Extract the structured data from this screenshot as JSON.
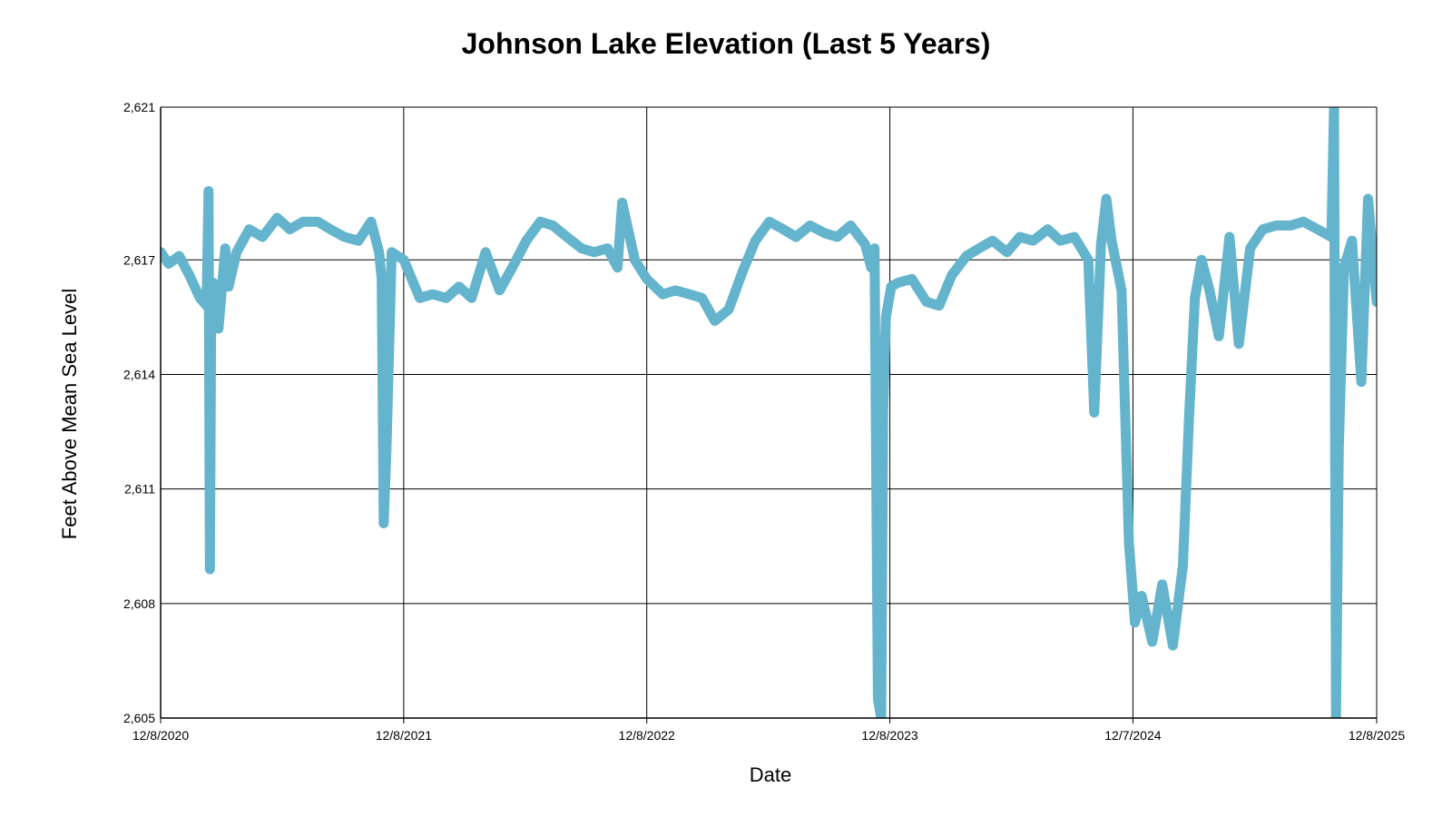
{
  "chart_data": {
    "type": "line",
    "title": "Johnson Lake Elevation (Last 5 Years)",
    "xlabel": "Date",
    "ylabel": "Feet Above Mean Sea Level",
    "x_tick_labels": [
      "12/8/2020",
      "12/8/2021",
      "12/8/2022",
      "12/8/2023",
      "12/7/2024",
      "12/8/2025"
    ],
    "y_tick_labels": [
      "2,605",
      "2,608",
      "2,611",
      "2,614",
      "2,617",
      "2,621"
    ],
    "ylim": [
      2605,
      2621
    ],
    "grid": true,
    "line_color": "#63b4cc",
    "series": [
      {
        "x": [
          "2020-12-08",
          "2020-12-20",
          "2021-01-05",
          "2021-01-20",
          "2021-02-05",
          "2021-02-15",
          "2021-02-18",
          "2021-02-20",
          "2021-02-22",
          "2021-02-25",
          "2021-03-05",
          "2021-03-15",
          "2021-03-20",
          "2021-04-01",
          "2021-04-20",
          "2021-05-10",
          "2021-06-01",
          "2021-06-20",
          "2021-07-10",
          "2021-08-01",
          "2021-08-20",
          "2021-09-10",
          "2021-10-01",
          "2021-10-20",
          "2021-11-01",
          "2021-11-05",
          "2021-11-08",
          "2021-11-12",
          "2021-11-20",
          "2021-12-08",
          "2022-01-01",
          "2022-01-20",
          "2022-02-10",
          "2022-03-01",
          "2022-03-20",
          "2022-04-10",
          "2022-05-01",
          "2022-05-20",
          "2022-06-10",
          "2022-07-01",
          "2022-07-20",
          "2022-08-10",
          "2022-09-01",
          "2022-09-20",
          "2022-10-10",
          "2022-10-25",
          "2022-11-01",
          "2022-11-20",
          "2022-12-08",
          "2023-01-01",
          "2023-01-20",
          "2023-02-10",
          "2023-03-01",
          "2023-03-20",
          "2023-04-10",
          "2023-05-01",
          "2023-05-20",
          "2023-06-10",
          "2023-07-01",
          "2023-07-20",
          "2023-08-10",
          "2023-09-01",
          "2023-09-20",
          "2023-10-10",
          "2023-11-01",
          "2023-11-10",
          "2023-11-15",
          "2023-11-20",
          "2023-11-25",
          "2023-11-28",
          "2023-12-02",
          "2023-12-10",
          "2023-12-20",
          "2024-01-10",
          "2024-02-01",
          "2024-02-20",
          "2024-03-10",
          "2024-04-01",
          "2024-04-20",
          "2024-05-10",
          "2024-06-01",
          "2024-06-20",
          "2024-07-10",
          "2024-08-01",
          "2024-08-20",
          "2024-09-10",
          "2024-10-01",
          "2024-10-10",
          "2024-10-20",
          "2024-10-28",
          "2024-11-05",
          "2024-11-20",
          "2024-12-01",
          "2024-12-10",
          "2024-12-20",
          "2025-01-05",
          "2025-01-20",
          "2025-02-05",
          "2025-02-20",
          "2025-03-01",
          "2025-03-10",
          "2025-03-20",
          "2025-04-01",
          "2025-04-15",
          "2025-05-01",
          "2025-05-15",
          "2025-06-01",
          "2025-06-20",
          "2025-07-10",
          "2025-08-01",
          "2025-08-20",
          "2025-09-10",
          "2025-10-01",
          "2025-10-05",
          "2025-10-08",
          "2025-10-12",
          "2025-10-20",
          "2025-11-01",
          "2025-11-15",
          "2025-11-25",
          "2025-12-08"
        ],
        "values": [
          2617.2,
          2616.9,
          2617.1,
          2616.6,
          2616.0,
          2615.8,
          2618.8,
          2608.9,
          2616.0,
          2616.4,
          2615.2,
          2617.3,
          2616.3,
          2617.2,
          2617.8,
          2617.6,
          2618.1,
          2617.8,
          2618.0,
          2618.0,
          2617.8,
          2617.6,
          2617.5,
          2618.0,
          2617.2,
          2616.5,
          2610.1,
          2612.0,
          2617.2,
          2617.0,
          2616.0,
          2616.1,
          2616.0,
          2616.3,
          2616.0,
          2617.2,
          2616.2,
          2616.8,
          2617.5,
          2618.0,
          2617.9,
          2617.6,
          2617.3,
          2617.2,
          2617.3,
          2616.8,
          2618.5,
          2617.0,
          2616.5,
          2616.1,
          2616.2,
          2616.1,
          2616.0,
          2615.4,
          2615.7,
          2616.7,
          2617.5,
          2618.0,
          2617.8,
          2617.6,
          2617.9,
          2617.7,
          2617.6,
          2617.9,
          2617.4,
          2616.8,
          2617.3,
          2605.5,
          2605.0,
          2613.0,
          2615.5,
          2616.3,
          2616.4,
          2616.5,
          2615.9,
          2615.8,
          2616.6,
          2617.1,
          2617.3,
          2617.5,
          2617.2,
          2617.6,
          2617.5,
          2617.8,
          2617.5,
          2617.6,
          2617.0,
          2613.0,
          2617.4,
          2618.6,
          2617.5,
          2616.2,
          2609.6,
          2607.5,
          2608.2,
          2607.0,
          2608.5,
          2606.9,
          2609.0,
          2612.8,
          2616.0,
          2617.0,
          2616.2,
          2615.0,
          2617.6,
          2614.8,
          2617.3,
          2617.8,
          2617.9,
          2617.9,
          2618.0,
          2617.8,
          2617.6,
          2621.0,
          2605.0,
          2612.0,
          2616.8,
          2617.5,
          2613.8,
          2618.6,
          2615.9
        ]
      }
    ]
  }
}
